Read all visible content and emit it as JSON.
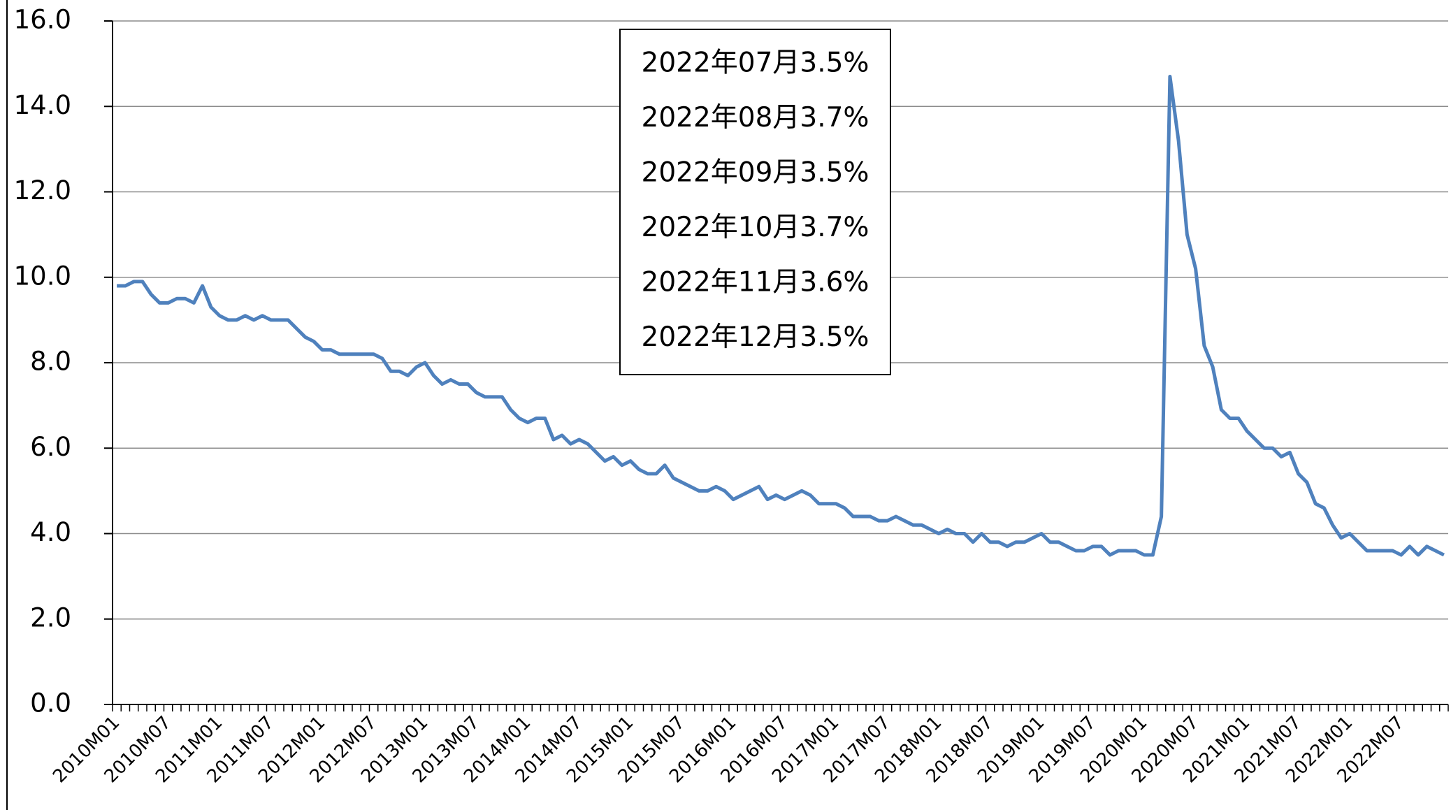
{
  "chart_data": {
    "type": "line",
    "categories": [
      "2010M01",
      null,
      null,
      null,
      null,
      null,
      "2010M07",
      null,
      null,
      null,
      null,
      null,
      "2011M01",
      null,
      null,
      null,
      null,
      null,
      "2011M07",
      null,
      null,
      null,
      null,
      null,
      "2012M01",
      null,
      null,
      null,
      null,
      null,
      "2012M07",
      null,
      null,
      null,
      null,
      null,
      "2013M01",
      null,
      null,
      null,
      null,
      null,
      "2013M07",
      null,
      null,
      null,
      null,
      null,
      "2014M01",
      null,
      null,
      null,
      null,
      null,
      "2014M07",
      null,
      null,
      null,
      null,
      null,
      "2015M01",
      null,
      null,
      null,
      null,
      null,
      "2015M07",
      null,
      null,
      null,
      null,
      null,
      "2016M01",
      null,
      null,
      null,
      null,
      null,
      "2016M07",
      null,
      null,
      null,
      null,
      null,
      "2017M01",
      null,
      null,
      null,
      null,
      null,
      "2017M07",
      null,
      null,
      null,
      null,
      null,
      "2018M01",
      null,
      null,
      null,
      null,
      null,
      "2018M07",
      null,
      null,
      null,
      null,
      null,
      "2019M01",
      null,
      null,
      null,
      null,
      null,
      "2019M07",
      null,
      null,
      null,
      null,
      null,
      "2020M01",
      null,
      null,
      null,
      null,
      null,
      "2020M07",
      null,
      null,
      null,
      null,
      null,
      "2021M01",
      null,
      null,
      null,
      null,
      null,
      "2021M07",
      null,
      null,
      null,
      null,
      null,
      "2022M01",
      null,
      null,
      null,
      null,
      null,
      "2022M07",
      null,
      null,
      null,
      null,
      null
    ],
    "series": [
      {
        "color": "#4f81bd",
        "values": [
          9.8,
          9.8,
          9.9,
          9.9,
          9.6,
          9.4,
          9.4,
          9.5,
          9.5,
          9.4,
          9.8,
          9.3,
          9.1,
          9.0,
          9.0,
          9.1,
          9.0,
          9.1,
          9.0,
          9.0,
          9.0,
          8.8,
          8.6,
          8.5,
          8.3,
          8.3,
          8.2,
          8.2,
          8.2,
          8.2,
          8.2,
          8.1,
          7.8,
          7.8,
          7.7,
          7.9,
          8.0,
          7.7,
          7.5,
          7.6,
          7.5,
          7.5,
          7.3,
          7.2,
          7.2,
          7.2,
          6.9,
          6.7,
          6.6,
          6.7,
          6.7,
          6.2,
          6.3,
          6.1,
          6.2,
          6.1,
          5.9,
          5.7,
          5.8,
          5.6,
          5.7,
          5.5,
          5.4,
          5.4,
          5.6,
          5.3,
          5.2,
          5.1,
          5.0,
          5.0,
          5.1,
          5.0,
          4.8,
          4.9,
          5.0,
          5.1,
          4.8,
          4.9,
          4.8,
          4.9,
          5.0,
          4.9,
          4.7,
          4.7,
          4.7,
          4.6,
          4.4,
          4.4,
          4.4,
          4.3,
          4.3,
          4.4,
          4.3,
          4.2,
          4.2,
          4.1,
          4.0,
          4.1,
          4.0,
          4.0,
          3.8,
          4.0,
          3.8,
          3.8,
          3.7,
          3.8,
          3.8,
          3.9,
          4.0,
          3.8,
          3.8,
          3.7,
          3.6,
          3.6,
          3.7,
          3.7,
          3.5,
          3.6,
          3.6,
          3.6,
          3.5,
          3.5,
          4.4,
          14.7,
          13.2,
          11.0,
          10.2,
          8.4,
          7.9,
          6.9,
          6.7,
          6.7,
          6.4,
          6.2,
          6.0,
          6.0,
          5.8,
          5.9,
          5.4,
          5.2,
          4.7,
          4.6,
          4.2,
          3.9,
          4.0,
          3.8,
          3.6,
          3.6,
          3.6,
          3.6,
          3.5,
          3.7,
          3.5,
          3.7,
          3.6,
          3.5
        ]
      }
    ],
    "ylim": [
      0,
      16
    ],
    "yticks": [
      {
        "value": 0,
        "label": "0.0"
      },
      {
        "value": 2,
        "label": "2.0"
      },
      {
        "value": 4,
        "label": "4.0"
      },
      {
        "value": 6,
        "label": "6.0"
      },
      {
        "value": 8,
        "label": "8.0"
      },
      {
        "value": 10,
        "label": "10.0"
      },
      {
        "value": 12,
        "label": "12.0"
      },
      {
        "value": 14,
        "label": "14.0"
      },
      {
        "value": 16,
        "label": "16.0"
      }
    ],
    "grid": true,
    "annotations": [
      "2022年07月3.5%",
      "2022年08月3.7%",
      "2022年09月3.5%",
      "2022年10月3.7%",
      "2022年11月3.6%",
      "2022年12月3.5%"
    ]
  }
}
